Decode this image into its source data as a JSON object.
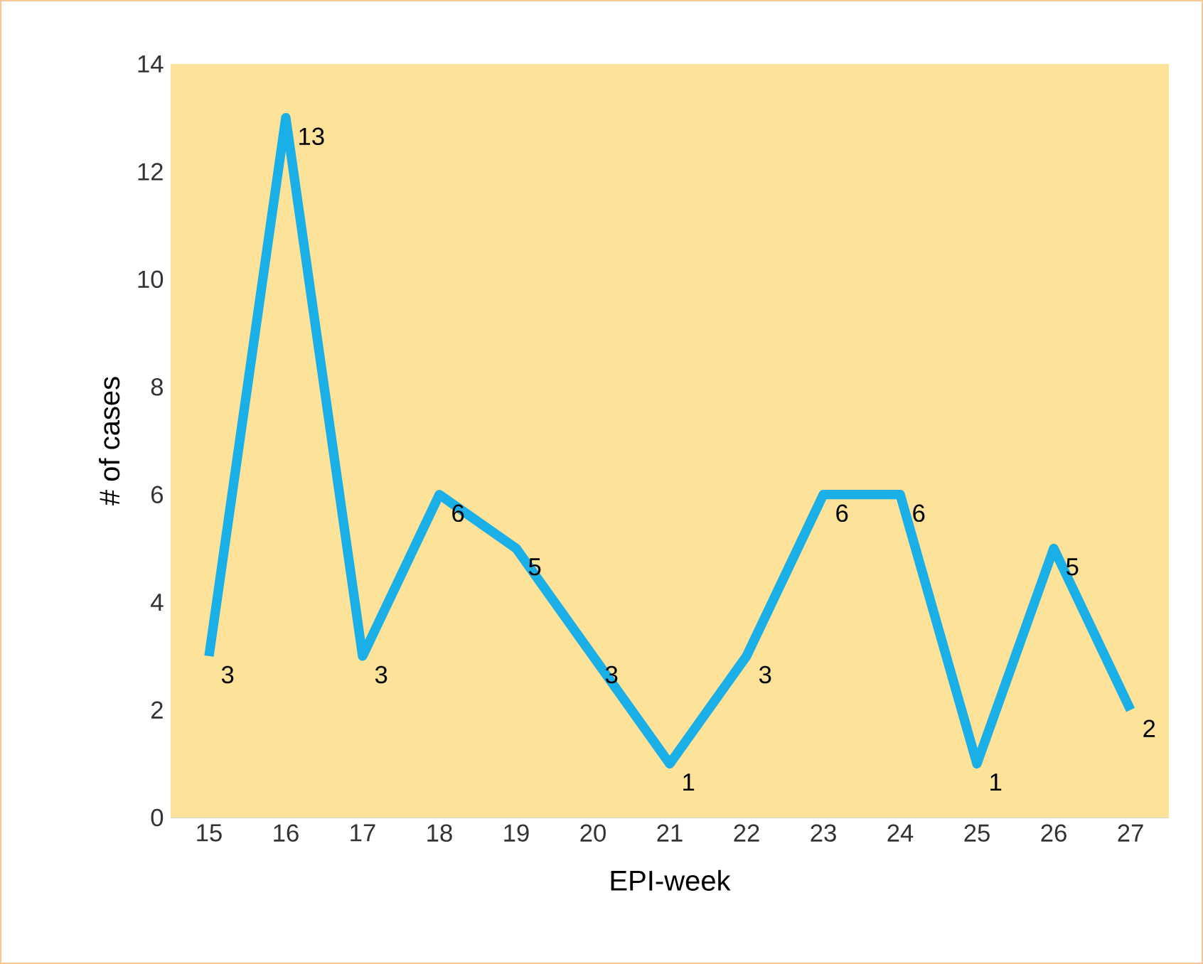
{
  "chart_data": {
    "type": "line",
    "xlabel": "EPI-week",
    "ylabel": "# of cases",
    "categories": [
      "15",
      "16",
      "17",
      "18",
      "19",
      "20",
      "21",
      "22",
      "23",
      "24",
      "25",
      "26",
      "27"
    ],
    "values": [
      3,
      13,
      3,
      6,
      5,
      3,
      1,
      3,
      6,
      6,
      1,
      5,
      2
    ],
    "color": "#1aafe6",
    "line_style": "solid",
    "data_labels": true,
    "ylim": [
      0,
      14
    ],
    "yticks": [
      0,
      2,
      4,
      6,
      8,
      10,
      12,
      14
    ]
  }
}
